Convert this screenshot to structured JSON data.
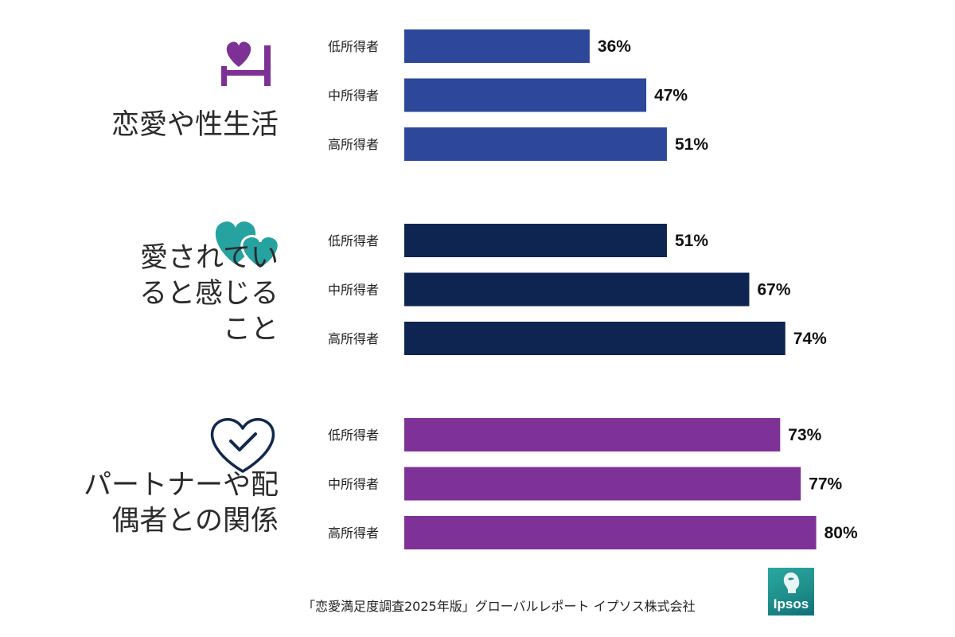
{
  "chart_data": {
    "type": "bar",
    "orientation": "horizontal",
    "xlim": [
      0,
      100
    ],
    "tiers": [
      "低所得者",
      "中所得者",
      "高所得者"
    ],
    "groups": [
      {
        "label_lines": [
          "恋愛や性生活"
        ],
        "icon": "heart-bed-icon",
        "color": "#2d479a",
        "values": [
          36,
          47,
          51
        ]
      },
      {
        "label_lines": [
          "愛されてい",
          "ると感じる",
          "こと"
        ],
        "icon": "two-hearts-icon",
        "color": "#0e2552",
        "values": [
          51,
          67,
          74
        ]
      },
      {
        "label_lines": [
          "パートナーや配",
          "偶者との関係"
        ],
        "icon": "heart-check-icon",
        "color": "#7e3196",
        "values": [
          73,
          77,
          80
        ]
      }
    ],
    "value_suffix": "%"
  },
  "footer": {
    "source": "「恋愛満足度調査2025年版」グローバルレポート イプソス株式会社"
  },
  "logo": {
    "text": "Ipsos"
  },
  "colors": {
    "icon_purple": "#7d3195",
    "icon_teal": "#26a2a0",
    "icon_navy": "#12284e"
  }
}
